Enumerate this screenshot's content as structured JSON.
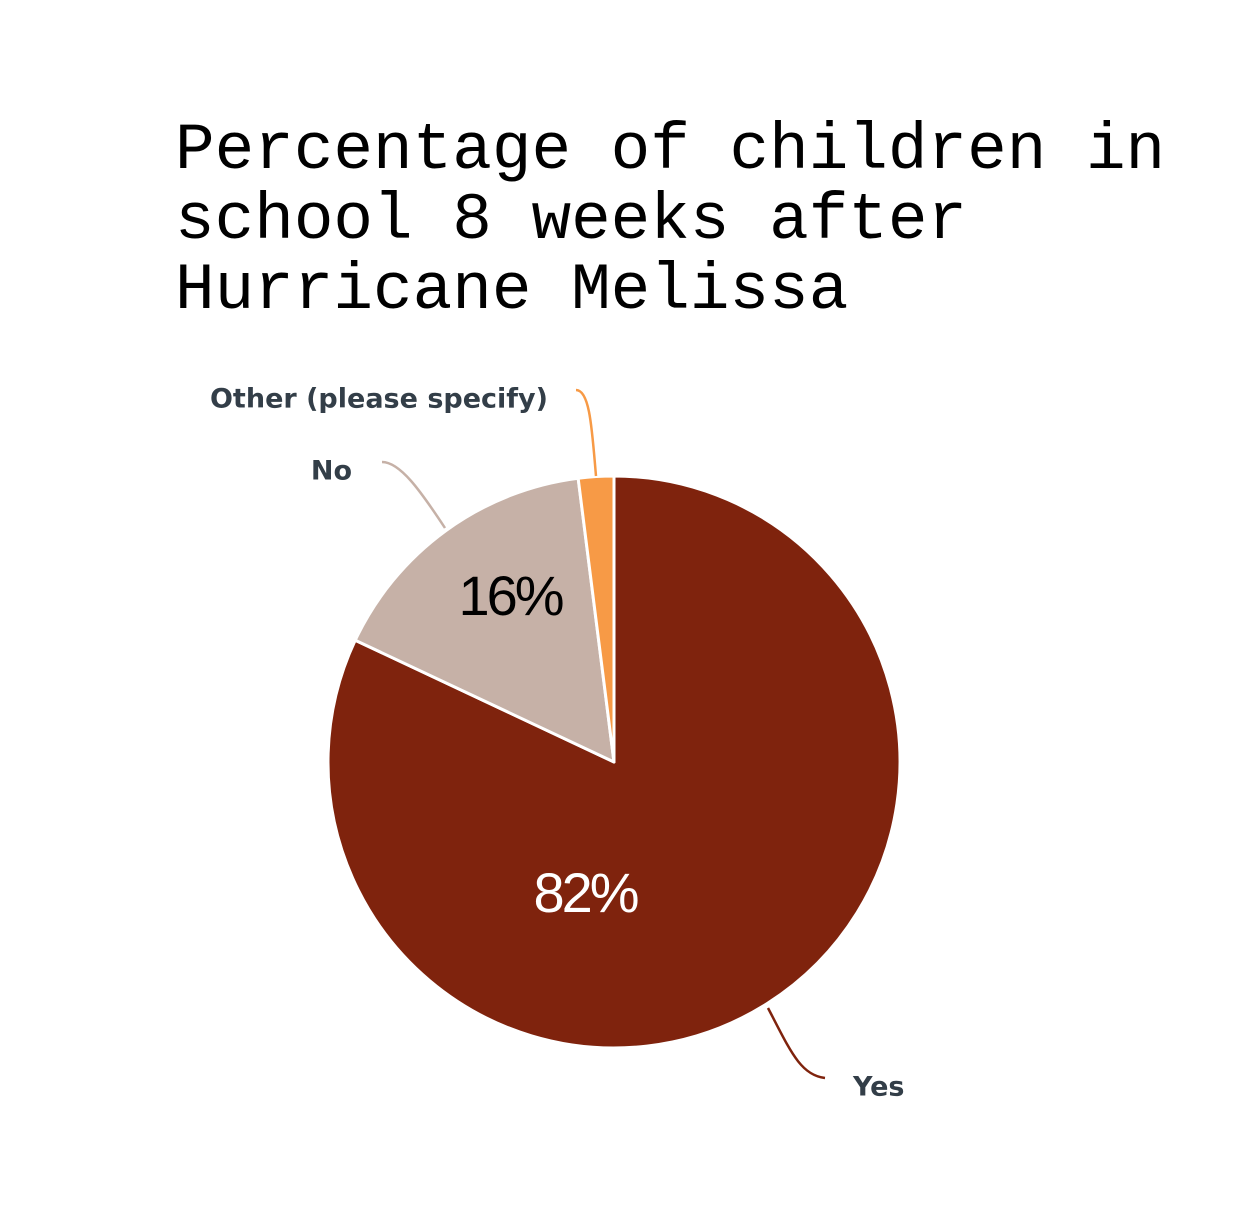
{
  "chart_data": {
    "type": "pie",
    "title": "Percentage of children in school 8 weeks after Hurricane Melissa",
    "categories": [
      "Yes",
      "No",
      "Other (please specify)"
    ],
    "values": [
      82,
      16,
      2
    ],
    "value_labels": [
      "82%",
      "16%",
      null
    ],
    "colors": [
      "#7f230d",
      "#c6b1a7",
      "#f79a46"
    ],
    "start_angle": 0,
    "direction": "clockwise"
  }
}
